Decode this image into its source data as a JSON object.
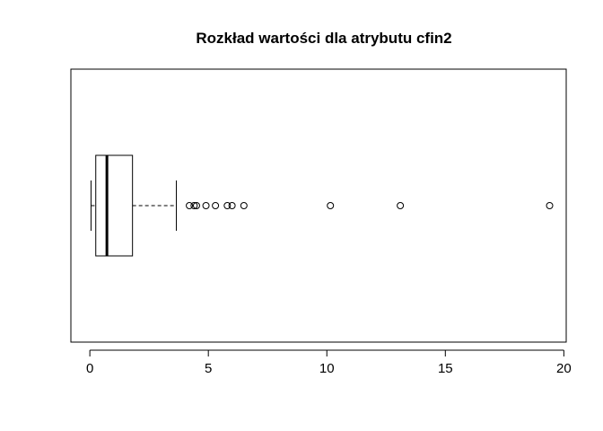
{
  "chart_data": {
    "type": "boxplot",
    "orientation": "horizontal",
    "title": "Rozkład wartości dla atrybutu cfin2",
    "xlabel": "",
    "ylabel": "",
    "xlim": [
      -0.8,
      20.1
    ],
    "x_ticks": [
      0,
      5,
      10,
      15,
      20
    ],
    "x_tick_labels": [
      "0",
      "5",
      "10",
      "15",
      "20"
    ],
    "grid": false,
    "legend": "none",
    "box": {
      "min": 0.05,
      "q1": 0.25,
      "median": 0.72,
      "q3": 1.8,
      "max": 3.65
    },
    "outliers": [
      4.2,
      4.4,
      4.5,
      4.9,
      5.3,
      5.8,
      6.0,
      6.5,
      10.15,
      13.1,
      19.4
    ],
    "colors": {
      "stroke": "#000000",
      "background": "#ffffff"
    }
  }
}
